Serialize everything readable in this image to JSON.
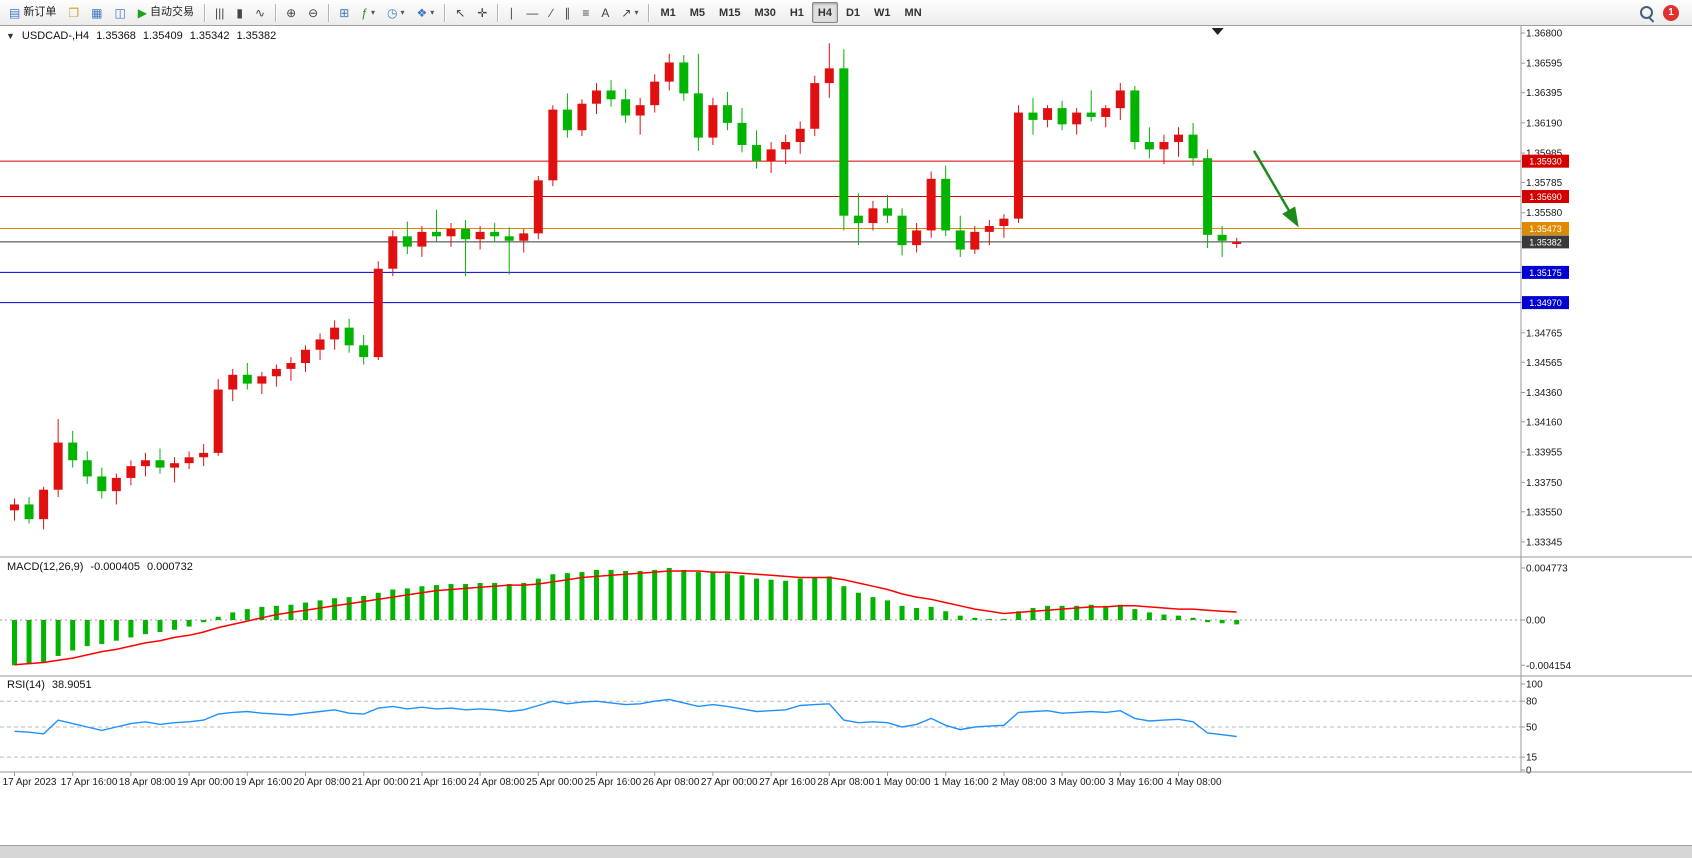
{
  "toolbar": {
    "items": [
      {
        "name": "new-order-button",
        "label": "新订单",
        "glyph": "▤",
        "glyph_color": "#3c77c2"
      },
      {
        "name": "charts-button",
        "glyph": "❐",
        "glyph_color": "#c9a227"
      },
      {
        "name": "market-watch-button",
        "glyph": "▦",
        "glyph_color": "#3c77c2"
      },
      {
        "name": "navigator-button",
        "glyph": "◫",
        "glyph_color": "#3c77c2"
      },
      {
        "name": "autotrading-button",
        "label": "自动交易",
        "glyph": "▶",
        "glyph_color": "#1ea01e"
      },
      {
        "sep": true
      },
      {
        "name": "bar-chart-button",
        "glyph": "|||",
        "glyph_color": "#444"
      },
      {
        "name": "candlestick-button",
        "glyph": "▮",
        "glyph_color": "#444"
      },
      {
        "name": "line-chart-button",
        "glyph": "∿",
        "glyph_color": "#444"
      },
      {
        "sep": true
      },
      {
        "name": "zoom-in-button",
        "glyph": "⊕",
        "glyph_color": "#444"
      },
      {
        "name": "zoom-out-button",
        "glyph": "⊖",
        "glyph_color": "#444"
      },
      {
        "sep": true
      },
      {
        "name": "tile-windows-button",
        "glyph": "⊞",
        "glyph_color": "#3c77c2"
      },
      {
        "name": "indicators-button",
        "glyph": "ƒ",
        "glyph_color": "#2a8a2a",
        "dropdown": true
      },
      {
        "name": "periods-button",
        "glyph": "◷",
        "glyph_color": "#3c77c2",
        "dropdown": true
      },
      {
        "name": "templates-button",
        "glyph": "❖",
        "glyph_color": "#3c77c2",
        "dropdown": true
      },
      {
        "sep": true
      },
      {
        "name": "cursor-button",
        "glyph": "↖",
        "glyph_color": "#444"
      },
      {
        "name": "crosshair-button",
        "glyph": "✛",
        "glyph_color": "#444"
      },
      {
        "sep": true
      },
      {
        "name": "vertical-line-button",
        "glyph": "∣",
        "glyph_color": "#444"
      },
      {
        "name": "horizontal-line-button",
        "glyph": "―",
        "glyph_color": "#444"
      },
      {
        "name": "trendline-button",
        "glyph": "∕",
        "glyph_color": "#444"
      },
      {
        "name": "channel-button",
        "glyph": "∥",
        "glyph_color": "#444"
      },
      {
        "name": "fibonacci-button",
        "glyph": "≡",
        "glyph_color": "#444"
      },
      {
        "name": "text-button",
        "glyph": "A",
        "glyph_color": "#444"
      },
      {
        "name": "arrows-button",
        "glyph": "↗",
        "glyph_color": "#444",
        "dropdown": true
      },
      {
        "sep": true
      }
    ],
    "timeframes": [
      {
        "label": "M1"
      },
      {
        "label": "M5"
      },
      {
        "label": "M15"
      },
      {
        "label": "M30"
      },
      {
        "label": "H1"
      },
      {
        "label": "H4"
      },
      {
        "label": "D1"
      },
      {
        "label": "W1"
      },
      {
        "label": "MN"
      }
    ],
    "active_timeframe": "H4",
    "notification_count": "1"
  },
  "chart": {
    "symbol_period": "USDCAD-,H4",
    "open": "1.35368",
    "high": "1.35409",
    "low": "1.35342",
    "close": "1.35382"
  },
  "indicators": {
    "macd_label": "MACD(12,26,9)",
    "macd_value": "-0.000405",
    "macd_signal_value": "0.000732",
    "rsi_label": "RSI(14)",
    "rsi_value": "38.9051"
  },
  "colors": {
    "bull": "#e01010",
    "bear": "#00b400",
    "macd_hist": "#00b400",
    "macd_signal": "#ff0000",
    "rsi_line": "#1e90ff",
    "axis_text": "#1a1a1a",
    "arrow_object": "#1e8a1e"
  },
  "chart_data": [
    {
      "type": "candlestick",
      "title": "USDCAD H4",
      "ylim": [
        1.33345,
        1.368
      ],
      "y_ticks": [
        "1.36800",
        "1.36595",
        "1.36395",
        "1.36190",
        "1.35985",
        "1.35785",
        "1.35580",
        "1.35380",
        "1.35175",
        "1.34970",
        "1.34765",
        "1.34565",
        "1.34360",
        "1.34160",
        "1.33955",
        "1.33750",
        "1.33550",
        "1.33345"
      ],
      "x_labels": [
        "17 Apr 2023",
        "17 Apr 16:00",
        "18 Apr 08:00",
        "19 Apr 00:00",
        "19 Apr 16:00",
        "20 Apr 08:00",
        "21 Apr 00:00",
        "21 Apr 16:00",
        "24 Apr 08:00",
        "25 Apr 00:00",
        "25 Apr 16:00",
        "26 Apr 08:00",
        "27 Apr 00:00",
        "27 Apr 16:00",
        "28 Apr 08:00",
        "1 May 00:00",
        "1 May 16:00",
        "2 May 08:00",
        "3 May 00:00",
        "3 May 16:00",
        "4 May 08:00"
      ],
      "candles_per_label": 4,
      "ohlc": [
        [
          1.3356,
          1.3364,
          1.3349,
          1.336
        ],
        [
          1.336,
          1.3365,
          1.3347,
          1.335
        ],
        [
          1.335,
          1.3372,
          1.3343,
          1.337
        ],
        [
          1.337,
          1.3418,
          1.3365,
          1.3402
        ],
        [
          1.3402,
          1.341,
          1.3385,
          1.339
        ],
        [
          1.339,
          1.3396,
          1.3374,
          1.3379
        ],
        [
          1.3379,
          1.3385,
          1.3364,
          1.3369
        ],
        [
          1.3369,
          1.3381,
          1.336,
          1.3378
        ],
        [
          1.3378,
          1.339,
          1.3373,
          1.3386
        ],
        [
          1.3386,
          1.3395,
          1.3379,
          1.339
        ],
        [
          1.339,
          1.3398,
          1.3381,
          1.3385
        ],
        [
          1.3385,
          1.3392,
          1.3375,
          1.3388
        ],
        [
          1.3388,
          1.3396,
          1.3384,
          1.3392
        ],
        [
          1.3392,
          1.3401,
          1.3386,
          1.3395
        ],
        [
          1.3395,
          1.3445,
          1.3393,
          1.3438
        ],
        [
          1.3438,
          1.3452,
          1.343,
          1.3448
        ],
        [
          1.3448,
          1.3456,
          1.3438,
          1.3442
        ],
        [
          1.3442,
          1.345,
          1.3435,
          1.3447
        ],
        [
          1.3447,
          1.3455,
          1.344,
          1.3452
        ],
        [
          1.3452,
          1.346,
          1.3444,
          1.3456
        ],
        [
          1.3456,
          1.3468,
          1.345,
          1.3465
        ],
        [
          1.3465,
          1.3476,
          1.3458,
          1.3472
        ],
        [
          1.3472,
          1.3485,
          1.3465,
          1.348
        ],
        [
          1.348,
          1.3486,
          1.3463,
          1.3468
        ],
        [
          1.3468,
          1.3475,
          1.3455,
          1.346
        ],
        [
          1.346,
          1.3525,
          1.3458,
          1.352
        ],
        [
          1.352,
          1.3546,
          1.3515,
          1.3542
        ],
        [
          1.3542,
          1.3552,
          1.353,
          1.3535
        ],
        [
          1.3535,
          1.3549,
          1.3528,
          1.3545
        ],
        [
          1.3545,
          1.356,
          1.3538,
          1.3542
        ],
        [
          1.3542,
          1.3551,
          1.3535,
          1.3547
        ],
        [
          1.3547,
          1.3553,
          1.3515,
          1.354
        ],
        [
          1.354,
          1.3549,
          1.3533,
          1.3545
        ],
        [
          1.3545,
          1.3551,
          1.3538,
          1.3542
        ],
        [
          1.3542,
          1.3548,
          1.3516,
          1.3539
        ],
        [
          1.3539,
          1.3547,
          1.3531,
          1.3544
        ],
        [
          1.3544,
          1.3583,
          1.354,
          1.358
        ],
        [
          1.358,
          1.3631,
          1.3576,
          1.3628
        ],
        [
          1.3628,
          1.3639,
          1.3609,
          1.3614
        ],
        [
          1.3614,
          1.3635,
          1.361,
          1.3632
        ],
        [
          1.3632,
          1.3646,
          1.3625,
          1.3641
        ],
        [
          1.3641,
          1.3648,
          1.363,
          1.3635
        ],
        [
          1.3635,
          1.3642,
          1.3619,
          1.3624
        ],
        [
          1.3624,
          1.3636,
          1.3611,
          1.3631
        ],
        [
          1.3631,
          1.3652,
          1.3626,
          1.3647
        ],
        [
          1.3647,
          1.3666,
          1.3641,
          1.366
        ],
        [
          1.366,
          1.3665,
          1.3634,
          1.3639
        ],
        [
          1.3639,
          1.3666,
          1.36,
          1.3609
        ],
        [
          1.3609,
          1.3636,
          1.3604,
          1.3631
        ],
        [
          1.3631,
          1.364,
          1.3614,
          1.3619
        ],
        [
          1.3619,
          1.3629,
          1.3599,
          1.3604
        ],
        [
          1.3604,
          1.3614,
          1.3588,
          1.3593
        ],
        [
          1.3593,
          1.3606,
          1.3585,
          1.3601
        ],
        [
          1.3601,
          1.3611,
          1.3591,
          1.3606
        ],
        [
          1.3606,
          1.362,
          1.3598,
          1.3615
        ],
        [
          1.3615,
          1.3651,
          1.361,
          1.3646
        ],
        [
          1.3646,
          1.3673,
          1.3636,
          1.3656
        ],
        [
          1.3656,
          1.3669,
          1.3546,
          1.3556
        ],
        [
          1.3556,
          1.3571,
          1.3536,
          1.3551
        ],
        [
          1.3551,
          1.3566,
          1.3546,
          1.3561
        ],
        [
          1.3561,
          1.357,
          1.3551,
          1.3556
        ],
        [
          1.3556,
          1.3561,
          1.3529,
          1.3536
        ],
        [
          1.3536,
          1.3551,
          1.3531,
          1.3546
        ],
        [
          1.3546,
          1.3586,
          1.3541,
          1.3581
        ],
        [
          1.3581,
          1.359,
          1.3542,
          1.3546
        ],
        [
          1.3546,
          1.3556,
          1.3528,
          1.3533
        ],
        [
          1.3533,
          1.3549,
          1.353,
          1.3545
        ],
        [
          1.3545,
          1.3553,
          1.3536,
          1.3549
        ],
        [
          1.3549,
          1.3557,
          1.3541,
          1.3554
        ],
        [
          1.3554,
          1.3631,
          1.3551,
          1.3626
        ],
        [
          1.3626,
          1.3636,
          1.3611,
          1.3621
        ],
        [
          1.3621,
          1.3631,
          1.3616,
          1.3629
        ],
        [
          1.3629,
          1.3634,
          1.3614,
          1.3618
        ],
        [
          1.3618,
          1.3629,
          1.3611,
          1.3626
        ],
        [
          1.3626,
          1.3641,
          1.362,
          1.3623
        ],
        [
          1.3623,
          1.3631,
          1.3616,
          1.3629
        ],
        [
          1.3629,
          1.3646,
          1.3621,
          1.3641
        ],
        [
          1.3641,
          1.3644,
          1.3601,
          1.3606
        ],
        [
          1.3606,
          1.3616,
          1.3595,
          1.3601
        ],
        [
          1.3601,
          1.3611,
          1.3591,
          1.3606
        ],
        [
          1.3606,
          1.3616,
          1.3596,
          1.3611
        ],
        [
          1.3611,
          1.3619,
          1.359,
          1.3595
        ],
        [
          1.3595,
          1.3601,
          1.3534,
          1.3543
        ],
        [
          1.3543,
          1.3549,
          1.3528,
          1.3539
        ],
        [
          1.35368,
          1.35409,
          1.35342,
          1.35382
        ]
      ],
      "levels": [
        {
          "price": 1.3593,
          "label": "1.35930",
          "color": "#d40000",
          "kind": "resistance"
        },
        {
          "price": 1.3569,
          "label": "1.35690",
          "color": "#d40000",
          "kind": "resistance"
        },
        {
          "price": 1.35473,
          "label": "1.35473",
          "color": "#e08a00",
          "kind": "pivot"
        },
        {
          "price": 1.35382,
          "label": "1.35382",
          "color": "#3a3a3a",
          "kind": "current-price"
        },
        {
          "price": 1.35175,
          "label": "1.35175",
          "color": "#0000d0",
          "kind": "support"
        },
        {
          "price": 1.3497,
          "label": "1.34970",
          "color": "#0000d0",
          "kind": "support"
        }
      ],
      "annotations": [
        {
          "type": "arrow",
          "from_bar": 85.5,
          "from_price": 1.36,
          "to_bar": 88.4,
          "to_price": 1.3551
        }
      ],
      "shift_marker_bar": 83
    },
    {
      "type": "bar",
      "name": "MACD(12,26,9)",
      "ylim": [
        -0.004154,
        0.004773
      ],
      "y_ticks": [
        "0.004773",
        "0.00",
        "-0.004154"
      ],
      "values": [
        -0.004154,
        -0.004,
        -0.0039,
        -0.0033,
        -0.0028,
        -0.0024,
        -0.0022,
        -0.0019,
        -0.0016,
        -0.0013,
        -0.0011,
        -0.0009,
        -0.0006,
        -0.0002,
        0.0003,
        0.0007,
        0.001,
        0.0012,
        0.0013,
        0.0014,
        0.0016,
        0.0018,
        0.002,
        0.0021,
        0.0022,
        0.0025,
        0.0028,
        0.0029,
        0.0031,
        0.0032,
        0.0033,
        0.0033,
        0.0034,
        0.0034,
        0.0033,
        0.0034,
        0.0038,
        0.0042,
        0.0043,
        0.0044,
        0.0046,
        0.0046,
        0.0045,
        0.0045,
        0.0046,
        0.004773,
        0.0046,
        0.0044,
        0.0044,
        0.0043,
        0.0041,
        0.0038,
        0.0037,
        0.0036,
        0.0038,
        0.0039,
        0.004,
        0.0031,
        0.0025,
        0.0021,
        0.0018,
        0.0013,
        0.0011,
        0.0012,
        0.0008,
        0.0004,
        0.0002,
        0.0001,
        0.0001,
        0.0008,
        0.0011,
        0.0013,
        0.0013,
        0.0013,
        0.0014,
        0.0013,
        0.0014,
        0.001,
        0.0007,
        0.0005,
        0.0004,
        0.0002,
        -0.0002,
        -0.0003,
        -0.000405
      ],
      "signal": [
        -0.0041,
        -0.004,
        -0.0039,
        -0.0037,
        -0.0035,
        -0.0032,
        -0.0029,
        -0.0027,
        -0.0024,
        -0.0021,
        -0.0019,
        -0.0016,
        -0.0014,
        -0.0011,
        -0.0007,
        -0.0004,
        -0.0001,
        0.0002,
        0.0005,
        0.0007,
        0.0009,
        0.0011,
        0.0013,
        0.0015,
        0.0017,
        0.0019,
        0.0021,
        0.0023,
        0.0025,
        0.0027,
        0.0028,
        0.0029,
        0.003,
        0.0031,
        0.0032,
        0.0032,
        0.0033,
        0.0035,
        0.0037,
        0.0039,
        0.004,
        0.0041,
        0.0042,
        0.0043,
        0.0044,
        0.0045,
        0.0045,
        0.0045,
        0.0044,
        0.0044,
        0.0043,
        0.0042,
        0.0041,
        0.004,
        0.0039,
        0.0039,
        0.0039,
        0.0037,
        0.0034,
        0.0031,
        0.0028,
        0.0024,
        0.0021,
        0.0019,
        0.0016,
        0.0013,
        0.001,
        0.0008,
        0.0006,
        0.0007,
        0.0008,
        0.0009,
        0.001,
        0.0011,
        0.0012,
        0.0012,
        0.0013,
        0.0013,
        0.0012,
        0.0011,
        0.001,
        0.001,
        0.0009,
        0.0008,
        0.000732
      ]
    },
    {
      "type": "line",
      "name": "RSI(14)",
      "ylim": [
        0,
        100
      ],
      "levels": [
        80,
        50,
        15
      ],
      "y_ticks": [
        "100",
        "80",
        "50",
        "15",
        "0"
      ],
      "values": [
        45,
        44,
        42,
        58,
        54,
        50,
        46,
        50,
        54,
        56,
        53,
        55,
        56,
        58,
        65,
        67,
        68,
        66,
        65,
        64,
        66,
        68,
        70,
        66,
        65,
        72,
        74,
        71,
        73,
        71,
        72,
        70,
        71,
        70,
        68,
        70,
        75,
        80,
        77,
        79,
        80,
        78,
        76,
        77,
        80,
        82,
        78,
        74,
        76,
        74,
        71,
        68,
        69,
        70,
        75,
        76,
        77,
        58,
        55,
        56,
        55,
        50,
        53,
        60,
        52,
        47,
        50,
        51,
        52,
        67,
        68,
        69,
        66,
        67,
        68,
        67,
        69,
        60,
        57,
        58,
        59,
        56,
        43,
        41,
        38.9051
      ]
    }
  ]
}
